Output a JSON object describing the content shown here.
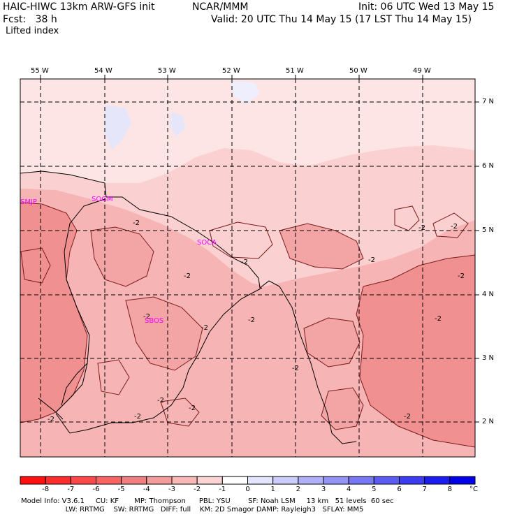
{
  "header": {
    "model": "HAIC-HIWC 13km ARW-GFS init",
    "center": "NCAR/MMM",
    "init": "Init: 06 UTC Wed 13 May 15",
    "fcst": "Fcst:   38 h",
    "valid": "Valid: 20 UTC Thu 14 May 15 (17 LST Thu 14 May 15)",
    "field": "Lifted index"
  },
  "map": {
    "lon_labels": [
      "55 W",
      "54 W",
      "53 W",
      "52 W",
      "51 W",
      "50 W",
      "49 W"
    ],
    "lat_labels": [
      "7 N",
      "6 N",
      "5 N",
      "4 N",
      "3 N",
      "2 N"
    ],
    "stations": [
      "SMJP",
      "SOGM",
      "SOCA",
      "SBOS"
    ],
    "contour_label": "-2",
    "colors": {
      "deep": "#f09090",
      "mid": "#f7b4b4",
      "light": "#fbd0d0",
      "faint": "#fde5e5",
      "blue": "#e6e6fb",
      "contour": "#7a1a1a",
      "coast": "#000000",
      "station": "#ff00ff"
    }
  },
  "colorbar": {
    "labels": [
      "-8",
      "-7",
      "-6",
      "-5",
      "-4",
      "-3",
      "-2",
      "-1",
      "0",
      "1",
      "2",
      "3",
      "4",
      "5",
      "6",
      "7",
      "8"
    ],
    "unit": "°C",
    "colors": [
      "#ff1010",
      "#ff2c2c",
      "#ff4848",
      "#f86464",
      "#f08080",
      "#f49c9c",
      "#f8b8b8",
      "#fcd4d4",
      "#ffffff",
      "#e4e4fc",
      "#ccccfa",
      "#b0b0f8",
      "#9494f6",
      "#7878f4",
      "#5c5cf2",
      "#3c3cf2",
      "#1c1cf0",
      "#0000e8"
    ]
  },
  "model_info": {
    "line1": "Model Info: V3.6.1     CU: KF       MP: Thompson      PBL: YSU        SF: Noah LSM     13 km   51 levels  60 sec",
    "line2": "                    LW: RRTMG    SW: RRTMG   DIFF: full    KM: 2D Smagor DAMP: Rayleigh3   SFLAY: MM5"
  }
}
